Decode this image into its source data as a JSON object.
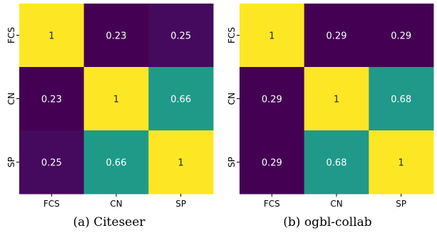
{
  "chart_data": [
    {
      "type": "heatmap",
      "caption": "(a) Citeseer",
      "rows": [
        "FCS",
        "CN",
        "SP"
      ],
      "cols": [
        "FCS",
        "CN",
        "SP"
      ],
      "values": [
        [
          1,
          0.23,
          0.25
        ],
        [
          0.23,
          1,
          0.66
        ],
        [
          0.25,
          0.66,
          1
        ]
      ],
      "labels": [
        [
          "1",
          "0.23",
          "0.25"
        ],
        [
          "0.23",
          "1",
          "0.66"
        ],
        [
          "0.25",
          "0.66",
          "1"
        ]
      ],
      "colormap": "viridis",
      "color_range": [
        0.23,
        1
      ]
    },
    {
      "type": "heatmap",
      "caption": "(b) ogbl-collab",
      "rows": [
        "FCS",
        "CN",
        "SP"
      ],
      "cols": [
        "FCS",
        "CN",
        "SP"
      ],
      "values": [
        [
          1,
          0.29,
          0.29
        ],
        [
          0.29,
          1,
          0.68
        ],
        [
          0.29,
          0.68,
          1
        ]
      ],
      "labels": [
        [
          "1",
          "0.29",
          "0.29"
        ],
        [
          "0.29",
          "1",
          "0.68"
        ],
        [
          "0.29",
          "0.68",
          "1"
        ]
      ],
      "colormap": "viridis",
      "color_range": [
        0.29,
        1
      ]
    }
  ]
}
